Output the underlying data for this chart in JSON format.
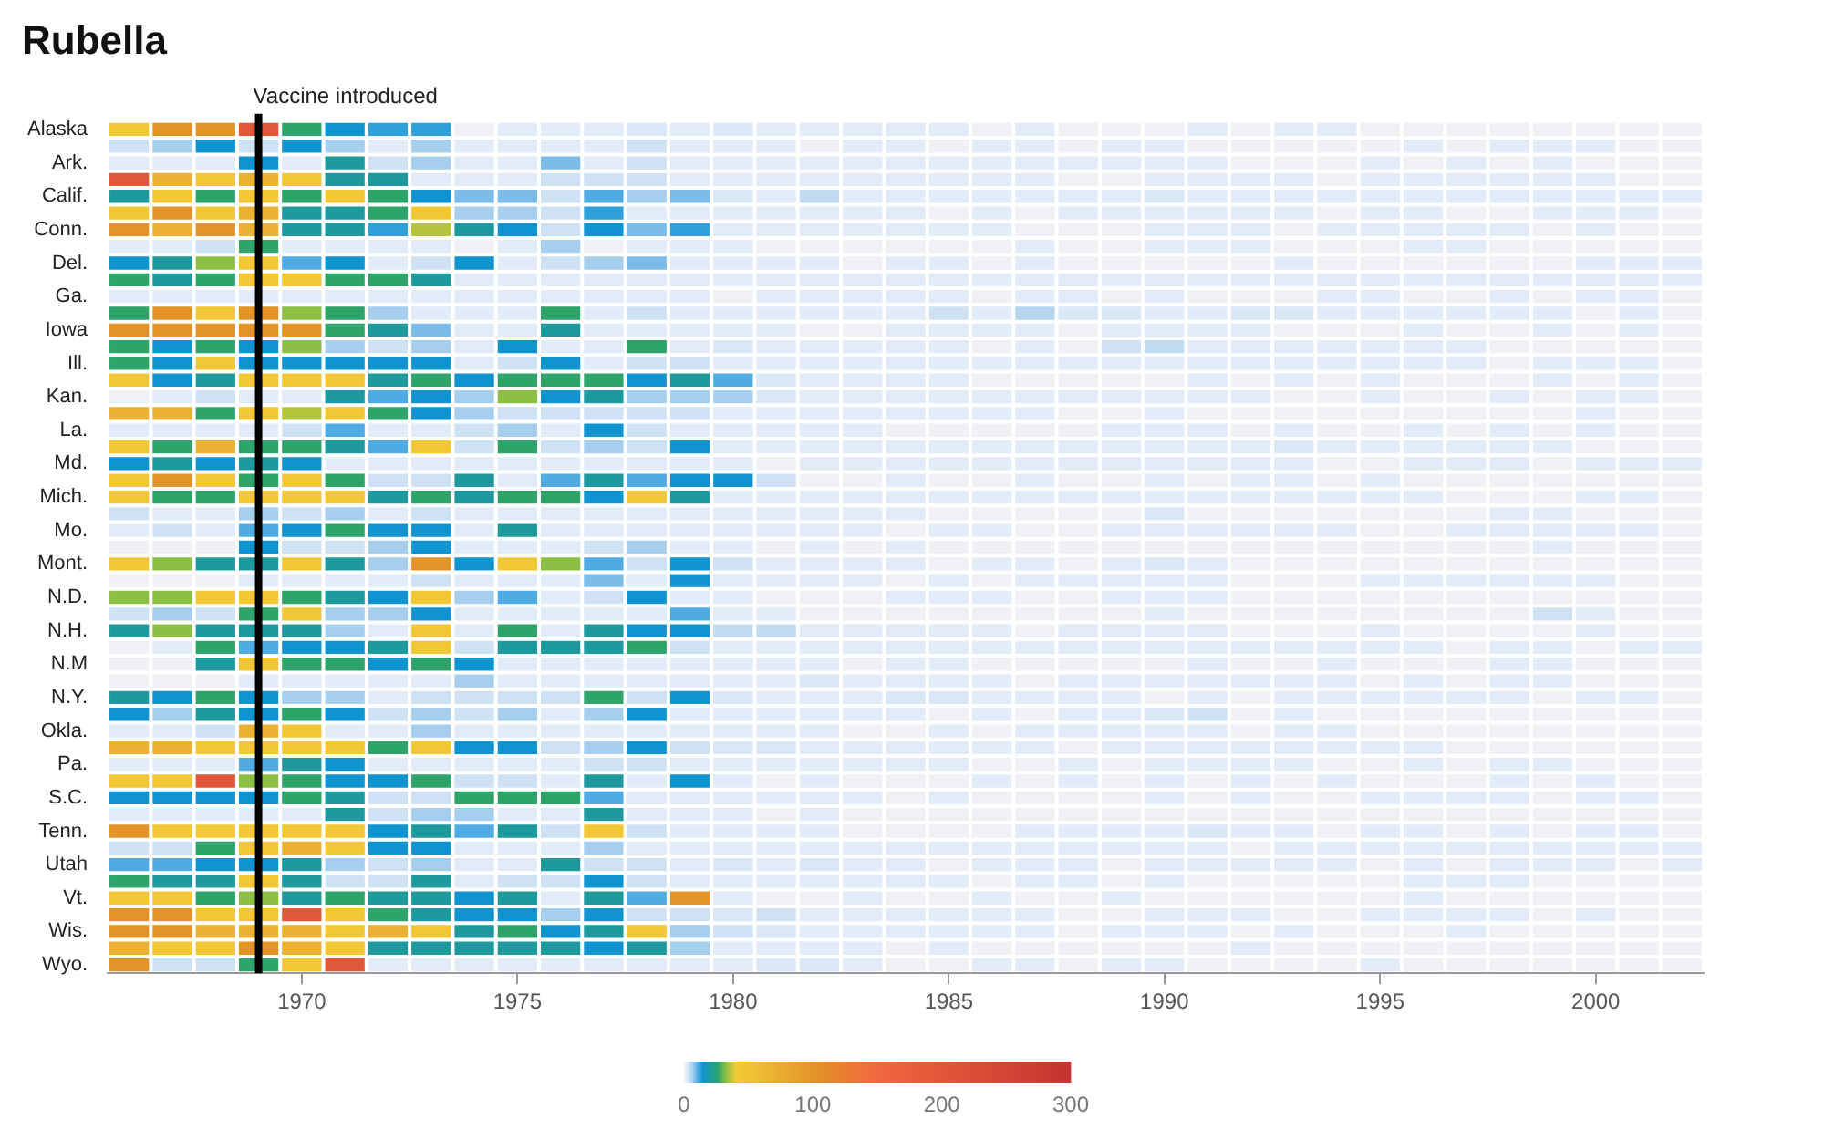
{
  "chart_data": {
    "type": "heatmap",
    "title": "Rubella",
    "x": [
      1966,
      1967,
      1968,
      1969,
      1970,
      1971,
      1972,
      1973,
      1974,
      1975,
      1976,
      1977,
      1978,
      1979,
      1980,
      1981,
      1982,
      1983,
      1984,
      1985,
      1986,
      1987,
      1988,
      1989,
      1990,
      1991,
      1992,
      1993,
      1994,
      1995,
      1996,
      1997,
      1998,
      1999,
      2000,
      2001,
      2002
    ],
    "xlim": [
      1965.5,
      2002.5
    ],
    "xticks": [
      1970,
      1975,
      1980,
      1985,
      1990,
      1995,
      2000
    ],
    "y_categories": [
      "Alaska",
      null,
      "Ark.",
      null,
      "Calif.",
      null,
      "Conn.",
      null,
      "Del.",
      null,
      "Ga.",
      null,
      "Iowa",
      null,
      "Ill.",
      null,
      "Kan.",
      null,
      "La.",
      null,
      "Md.",
      null,
      "Mich.",
      null,
      "Mo.",
      null,
      "Mont.",
      null,
      "N.D.",
      null,
      "N.H.",
      null,
      "N.M",
      null,
      "N.Y.",
      null,
      "Okla.",
      null,
      "Pa.",
      null,
      "S.C.",
      null,
      "Tenn.",
      null,
      "Utah",
      null,
      "Vt.",
      null,
      "Wis.",
      null,
      "Wyo."
    ],
    "cells": [
      [
        45,
        100,
        100,
        200,
        26,
        14,
        12,
        12,
        0,
        1,
        1,
        1,
        2,
        1,
        2,
        1,
        1,
        1,
        1,
        1,
        0,
        1,
        0,
        0,
        0,
        1,
        0,
        1,
        1,
        0,
        0,
        0,
        0,
        0,
        0,
        0,
        0
      ],
      [
        3,
        6,
        14,
        3,
        14,
        6,
        1,
        6,
        1,
        1,
        1,
        1,
        3,
        1,
        1,
        1,
        0,
        1,
        1,
        0,
        1,
        1,
        0,
        1,
        1,
        0,
        0,
        0,
        0,
        0,
        1,
        0,
        1,
        1,
        1,
        0,
        0
      ],
      [
        1,
        1,
        1,
        14,
        1,
        20,
        3,
        6,
        1,
        1,
        8,
        1,
        3,
        1,
        1,
        1,
        1,
        1,
        1,
        1,
        1,
        1,
        1,
        1,
        1,
        1,
        0,
        0,
        0,
        1,
        0,
        1,
        0,
        1,
        0,
        0,
        0
      ],
      [
        200,
        70,
        45,
        70,
        45,
        20,
        20,
        1,
        1,
        1,
        3,
        3,
        3,
        1,
        1,
        1,
        1,
        1,
        1,
        1,
        1,
        1,
        0,
        0,
        1,
        1,
        1,
        1,
        0,
        1,
        1,
        1,
        1,
        1,
        1,
        0,
        0
      ],
      [
        20,
        45,
        26,
        45,
        26,
        45,
        26,
        14,
        8,
        8,
        3,
        10,
        6,
        8,
        2,
        1,
        4,
        1,
        1,
        1,
        1,
        1,
        1,
        1,
        2,
        1,
        1,
        1,
        1,
        1,
        1,
        1,
        1,
        1,
        1,
        1,
        1
      ],
      [
        45,
        100,
        45,
        70,
        20,
        20,
        26,
        45,
        6,
        6,
        3,
        12,
        1,
        1,
        1,
        1,
        1,
        1,
        1,
        0,
        1,
        0,
        1,
        1,
        1,
        1,
        1,
        1,
        0,
        1,
        1,
        0,
        0,
        1,
        1,
        1,
        0
      ],
      [
        100,
        70,
        100,
        70,
        20,
        20,
        12,
        35,
        20,
        14,
        3,
        14,
        8,
        12,
        1,
        1,
        1,
        1,
        1,
        1,
        1,
        0,
        0,
        0,
        1,
        1,
        1,
        0,
        1,
        1,
        1,
        1,
        1,
        0,
        1,
        0,
        0
      ],
      [
        1,
        1,
        3,
        26,
        1,
        1,
        1,
        1,
        0,
        1,
        6,
        0,
        1,
        1,
        1,
        0,
        0,
        0,
        0,
        0,
        0,
        1,
        0,
        0,
        1,
        1,
        1,
        0,
        0,
        0,
        1,
        1,
        0,
        0,
        0,
        0,
        0
      ],
      [
        14,
        20,
        32,
        45,
        10,
        14,
        1,
        3,
        14,
        1,
        3,
        6,
        8,
        1,
        1,
        1,
        1,
        0,
        1,
        1,
        0,
        1,
        0,
        0,
        0,
        0,
        0,
        1,
        0,
        0,
        0,
        0,
        0,
        0,
        1,
        1,
        1
      ],
      [
        26,
        20,
        26,
        45,
        45,
        26,
        26,
        20,
        1,
        1,
        1,
        1,
        1,
        1,
        1,
        1,
        1,
        1,
        1,
        1,
        1,
        1,
        1,
        1,
        1,
        1,
        1,
        1,
        1,
        1,
        1,
        1,
        1,
        1,
        1,
        1,
        1
      ],
      [
        1,
        1,
        1,
        1,
        1,
        1,
        1,
        1,
        1,
        1,
        1,
        1,
        1,
        1,
        0,
        1,
        1,
        1,
        1,
        1,
        0,
        1,
        1,
        0,
        1,
        0,
        0,
        0,
        1,
        1,
        0,
        0,
        1,
        0,
        1,
        1,
        0
      ],
      [
        26,
        100,
        45,
        100,
        32,
        26,
        6,
        1,
        1,
        1,
        26,
        1,
        3,
        1,
        1,
        1,
        1,
        1,
        1,
        3,
        1,
        5,
        2,
        2,
        1,
        1,
        2,
        2,
        1,
        1,
        1,
        1,
        1,
        1,
        0,
        1,
        0
      ],
      [
        100,
        100,
        100,
        100,
        100,
        26,
        20,
        8,
        1,
        1,
        20,
        1,
        1,
        1,
        1,
        1,
        0,
        0,
        1,
        1,
        1,
        1,
        0,
        1,
        1,
        1,
        1,
        0,
        0,
        0,
        1,
        0,
        0,
        1,
        0,
        1,
        0
      ],
      [
        26,
        14,
        26,
        14,
        32,
        6,
        3,
        6,
        1,
        14,
        1,
        1,
        26,
        1,
        2,
        1,
        1,
        1,
        1,
        1,
        0,
        1,
        0,
        3,
        4,
        1,
        1,
        1,
        1,
        1,
        1,
        1,
        0,
        0,
        0,
        0,
        0
      ],
      [
        26,
        14,
        45,
        14,
        14,
        14,
        14,
        14,
        1,
        3,
        14,
        1,
        3,
        3,
        1,
        1,
        1,
        1,
        1,
        1,
        1,
        1,
        1,
        1,
        1,
        1,
        1,
        1,
        1,
        1,
        1,
        1,
        0,
        1,
        1,
        1,
        0
      ],
      [
        45,
        14,
        20,
        45,
        45,
        45,
        20,
        26,
        14,
        26,
        26,
        26,
        14,
        20,
        10,
        2,
        1,
        1,
        1,
        1,
        0,
        0,
        0,
        0,
        0,
        1,
        0,
        1,
        0,
        1,
        0,
        0,
        0,
        1,
        0,
        1,
        0
      ],
      [
        0,
        1,
        3,
        1,
        1,
        20,
        10,
        14,
        6,
        32,
        14,
        20,
        6,
        6,
        6,
        2,
        1,
        1,
        1,
        1,
        1,
        1,
        1,
        1,
        1,
        1,
        1,
        0,
        0,
        1,
        0,
        0,
        1,
        0,
        1,
        1,
        0
      ],
      [
        70,
        70,
        26,
        45,
        35,
        45,
        26,
        14,
        6,
        3,
        3,
        3,
        3,
        3,
        1,
        1,
        1,
        1,
        1,
        1,
        1,
        1,
        0,
        0,
        1,
        0,
        0,
        0,
        0,
        0,
        0,
        0,
        0,
        0,
        1,
        0,
        0
      ],
      [
        1,
        1,
        1,
        1,
        3,
        10,
        1,
        1,
        3,
        6,
        1,
        14,
        3,
        1,
        1,
        1,
        1,
        1,
        0,
        0,
        0,
        0,
        0,
        1,
        1,
        1,
        0,
        1,
        0,
        0,
        1,
        0,
        1,
        0,
        1,
        0,
        0
      ],
      [
        45,
        26,
        70,
        26,
        26,
        20,
        10,
        45,
        3,
        26,
        3,
        6,
        3,
        14,
        1,
        1,
        1,
        1,
        1,
        1,
        1,
        1,
        1,
        1,
        1,
        1,
        1,
        2,
        1,
        1,
        1,
        1,
        1,
        1,
        0,
        0,
        0
      ],
      [
        14,
        20,
        14,
        20,
        14,
        1,
        1,
        1,
        1,
        1,
        1,
        1,
        1,
        1,
        1,
        0,
        1,
        1,
        1,
        1,
        1,
        1,
        1,
        1,
        1,
        1,
        1,
        1,
        0,
        0,
        1,
        1,
        1,
        0,
        1,
        1,
        1
      ],
      [
        45,
        100,
        45,
        26,
        45,
        26,
        3,
        3,
        20,
        1,
        10,
        20,
        10,
        14,
        14,
        3,
        0,
        0,
        1,
        0,
        0,
        1,
        0,
        0,
        1,
        0,
        1,
        1,
        0,
        1,
        0,
        0,
        0,
        0,
        0,
        0,
        0
      ],
      [
        45,
        26,
        26,
        45,
        45,
        45,
        20,
        26,
        20,
        26,
        26,
        14,
        45,
        20,
        1,
        1,
        1,
        1,
        1,
        1,
        1,
        1,
        1,
        1,
        1,
        1,
        1,
        1,
        1,
        1,
        1,
        0,
        0,
        0,
        1,
        1,
        0
      ],
      [
        3,
        1,
        1,
        6,
        3,
        6,
        1,
        3,
        1,
        1,
        1,
        1,
        1,
        1,
        1,
        1,
        1,
        1,
        1,
        0,
        0,
        0,
        0,
        0,
        2,
        0,
        0,
        0,
        0,
        0,
        0,
        0,
        1,
        1,
        0,
        0,
        0
      ],
      [
        1,
        3,
        1,
        10,
        14,
        26,
        14,
        14,
        1,
        20,
        1,
        1,
        1,
        1,
        1,
        1,
        1,
        1,
        0,
        1,
        1,
        0,
        0,
        1,
        1,
        1,
        1,
        1,
        1,
        0,
        0,
        1,
        1,
        1,
        1,
        1,
        0
      ],
      [
        0,
        0,
        0,
        14,
        3,
        3,
        6,
        14,
        1,
        1,
        1,
        3,
        6,
        1,
        1,
        0,
        1,
        0,
        1,
        0,
        0,
        0,
        0,
        0,
        0,
        0,
        0,
        0,
        0,
        0,
        0,
        0,
        0,
        1,
        0,
        0,
        0
      ],
      [
        45,
        32,
        20,
        20,
        45,
        20,
        6,
        100,
        14,
        45,
        32,
        10,
        3,
        14,
        3,
        1,
        1,
        1,
        1,
        0,
        1,
        1,
        0,
        1,
        2,
        1,
        0,
        0,
        0,
        0,
        0,
        0,
        0,
        0,
        0,
        0,
        0
      ],
      [
        0,
        0,
        0,
        1,
        1,
        1,
        1,
        3,
        1,
        1,
        1,
        8,
        1,
        14,
        1,
        1,
        1,
        1,
        0,
        1,
        0,
        1,
        1,
        1,
        1,
        1,
        0,
        0,
        0,
        1,
        1,
        1,
        1,
        1,
        1,
        0,
        0
      ],
      [
        32,
        32,
        45,
        45,
        26,
        20,
        14,
        45,
        6,
        10,
        1,
        3,
        14,
        1,
        1,
        0,
        0,
        0,
        1,
        1,
        1,
        0,
        0,
        1,
        1,
        1,
        0,
        0,
        0,
        0,
        0,
        0,
        0,
        0,
        0,
        0,
        0
      ],
      [
        3,
        6,
        3,
        26,
        45,
        6,
        6,
        14,
        1,
        1,
        1,
        1,
        1,
        10,
        1,
        1,
        0,
        0,
        0,
        0,
        0,
        0,
        0,
        0,
        1,
        0,
        0,
        0,
        0,
        0,
        0,
        0,
        0,
        3,
        1,
        0,
        0
      ],
      [
        20,
        32,
        20,
        20,
        20,
        6,
        1,
        45,
        1,
        26,
        1,
        20,
        14,
        14,
        4,
        4,
        1,
        1,
        1,
        1,
        1,
        0,
        1,
        1,
        1,
        1,
        0,
        0,
        0,
        1,
        0,
        0,
        0,
        0,
        1,
        0,
        0
      ],
      [
        0,
        1,
        26,
        10,
        14,
        14,
        20,
        45,
        3,
        20,
        20,
        20,
        26,
        3,
        1,
        1,
        1,
        1,
        1,
        1,
        1,
        1,
        1,
        1,
        1,
        1,
        1,
        1,
        1,
        1,
        1,
        0,
        1,
        1,
        0,
        1,
        1
      ],
      [
        0,
        0,
        20,
        45,
        26,
        26,
        14,
        26,
        14,
        1,
        1,
        1,
        1,
        1,
        1,
        1,
        1,
        0,
        1,
        1,
        0,
        0,
        0,
        0,
        0,
        1,
        0,
        0,
        1,
        0,
        0,
        0,
        1,
        1,
        0,
        0,
        0
      ],
      [
        0,
        0,
        0,
        1,
        1,
        1,
        1,
        1,
        6,
        1,
        1,
        1,
        1,
        1,
        1,
        1,
        2,
        1,
        1,
        1,
        1,
        0,
        1,
        1,
        1,
        1,
        1,
        1,
        1,
        0,
        1,
        0,
        1,
        1,
        0,
        0,
        0
      ],
      [
        20,
        14,
        26,
        14,
        6,
        6,
        1,
        3,
        3,
        3,
        3,
        26,
        3,
        14,
        2,
        1,
        1,
        1,
        2,
        2,
        1,
        1,
        1,
        1,
        0,
        1,
        0,
        1,
        1,
        1,
        1,
        1,
        1,
        0,
        1,
        1,
        0
      ],
      [
        14,
        6,
        20,
        14,
        26,
        14,
        3,
        6,
        3,
        6,
        1,
        6,
        14,
        1,
        1,
        1,
        1,
        1,
        1,
        0,
        1,
        0,
        1,
        1,
        2,
        3,
        0,
        1,
        0,
        0,
        0,
        0,
        0,
        0,
        0,
        0,
        0
      ],
      [
        1,
        1,
        3,
        70,
        45,
        1,
        1,
        6,
        1,
        1,
        1,
        1,
        1,
        1,
        1,
        1,
        1,
        0,
        0,
        1,
        0,
        1,
        1,
        1,
        1,
        1,
        0,
        1,
        1,
        0,
        0,
        0,
        0,
        0,
        0,
        0,
        0
      ],
      [
        70,
        70,
        45,
        45,
        45,
        45,
        26,
        45,
        14,
        14,
        3,
        6,
        14,
        3,
        2,
        2,
        1,
        1,
        1,
        1,
        1,
        1,
        0,
        1,
        1,
        1,
        1,
        1,
        1,
        1,
        1,
        0,
        0,
        0,
        0,
        0,
        0
      ],
      [
        1,
        1,
        1,
        10,
        20,
        14,
        1,
        1,
        1,
        1,
        1,
        3,
        3,
        1,
        1,
        1,
        1,
        1,
        1,
        1,
        0,
        0,
        1,
        0,
        1,
        1,
        1,
        1,
        0,
        0,
        1,
        0,
        1,
        1,
        0,
        0,
        0
      ],
      [
        45,
        45,
        200,
        32,
        26,
        14,
        14,
        26,
        3,
        3,
        1,
        20,
        1,
        14,
        1,
        0,
        1,
        0,
        0,
        0,
        1,
        0,
        1,
        0,
        1,
        0,
        1,
        0,
        1,
        0,
        0,
        0,
        1,
        0,
        1,
        0,
        0
      ],
      [
        14,
        14,
        14,
        14,
        26,
        20,
        3,
        3,
        26,
        26,
        26,
        10,
        1,
        1,
        1,
        1,
        1,
        1,
        0,
        1,
        0,
        0,
        0,
        0,
        1,
        0,
        1,
        0,
        0,
        1,
        1,
        1,
        1,
        0,
        1,
        1,
        0
      ],
      [
        1,
        1,
        1,
        1,
        1,
        20,
        3,
        6,
        6,
        1,
        1,
        20,
        1,
        1,
        1,
        0,
        1,
        0,
        0,
        0,
        0,
        0,
        0,
        0,
        0,
        0,
        0,
        0,
        0,
        0,
        0,
        0,
        0,
        0,
        0,
        0,
        0
      ],
      [
        100,
        45,
        40,
        45,
        45,
        45,
        14,
        20,
        10,
        20,
        3,
        45,
        3,
        1,
        1,
        1,
        1,
        0,
        0,
        0,
        0,
        1,
        1,
        1,
        1,
        2,
        1,
        1,
        0,
        1,
        1,
        0,
        1,
        0,
        1,
        1,
        0
      ],
      [
        3,
        3,
        26,
        45,
        70,
        45,
        14,
        14,
        1,
        1,
        1,
        6,
        1,
        1,
        1,
        1,
        1,
        1,
        1,
        1,
        1,
        1,
        1,
        1,
        1,
        1,
        0,
        1,
        1,
        1,
        1,
        1,
        1,
        1,
        1,
        1,
        1
      ],
      [
        10,
        10,
        14,
        14,
        20,
        6,
        3,
        6,
        1,
        1,
        20,
        3,
        3,
        1,
        2,
        1,
        2,
        1,
        1,
        0,
        1,
        1,
        1,
        0,
        1,
        1,
        1,
        1,
        1,
        0,
        1,
        0,
        1,
        1,
        1,
        0,
        1
      ],
      [
        26,
        20,
        20,
        45,
        20,
        3,
        3,
        20,
        1,
        3,
        3,
        14,
        3,
        1,
        1,
        1,
        1,
        1,
        1,
        1,
        0,
        1,
        1,
        0,
        1,
        0,
        0,
        0,
        0,
        0,
        1,
        1,
        1,
        0,
        0,
        0,
        0
      ],
      [
        45,
        45,
        26,
        32,
        20,
        26,
        20,
        20,
        14,
        20,
        1,
        20,
        10,
        100,
        1,
        0,
        0,
        1,
        0,
        0,
        1,
        0,
        0,
        1,
        0,
        0,
        0,
        0,
        0,
        0,
        1,
        0,
        0,
        0,
        0,
        0,
        0
      ],
      [
        100,
        100,
        45,
        45,
        200,
        45,
        26,
        20,
        14,
        14,
        6,
        14,
        3,
        3,
        2,
        3,
        1,
        1,
        1,
        1,
        1,
        1,
        0,
        0,
        1,
        1,
        1,
        0,
        0,
        1,
        1,
        1,
        1,
        0,
        1,
        0,
        0
      ],
      [
        100,
        100,
        70,
        70,
        70,
        45,
        70,
        45,
        20,
        26,
        14,
        20,
        45,
        6,
        3,
        2,
        1,
        1,
        1,
        1,
        1,
        1,
        0,
        1,
        1,
        1,
        0,
        1,
        0,
        0,
        0,
        1,
        0,
        0,
        0,
        0,
        0
      ],
      [
        70,
        45,
        45,
        100,
        70,
        45,
        20,
        20,
        20,
        20,
        20,
        14,
        20,
        6,
        1,
        1,
        1,
        1,
        0,
        1,
        0,
        0,
        0,
        0,
        0,
        0,
        1,
        0,
        0,
        0,
        0,
        0,
        0,
        0,
        0,
        0,
        0
      ],
      [
        100,
        3,
        3,
        26,
        45,
        200,
        1,
        1,
        1,
        1,
        1,
        1,
        1,
        1,
        1,
        2,
        2,
        1,
        0,
        0,
        1,
        1,
        0,
        1,
        1,
        0,
        0,
        0,
        0,
        1,
        0,
        0,
        0,
        0,
        0,
        0,
        0
      ]
    ],
    "clim": [
      0,
      300
    ],
    "cticks": [
      0,
      100,
      200,
      300
    ],
    "ref_lines": [
      {
        "axis": "x",
        "value": 1969,
        "label": "Vaccine introduced",
        "color": "#000000"
      }
    ]
  }
}
